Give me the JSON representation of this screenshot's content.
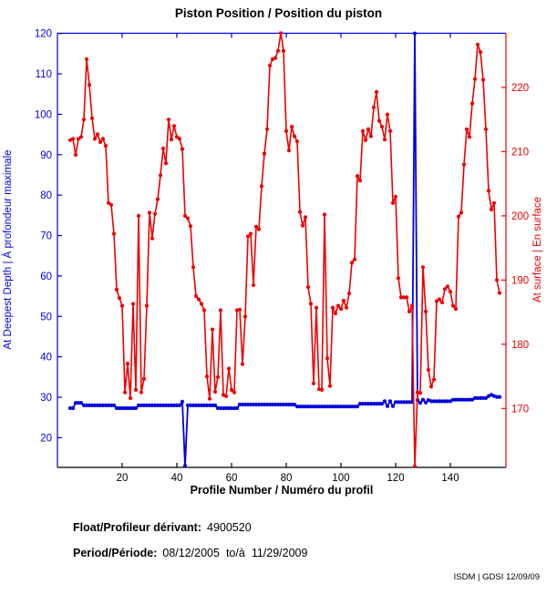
{
  "title": "Piston Position / Position du piston",
  "footer": {
    "float_label": "Float/Profileur dérivant:",
    "float_value": "4900520",
    "period_label": "Period/Période:",
    "period_start": "08/12/2005",
    "period_separator": "to/à",
    "period_end": "11/29/2009"
  },
  "corner_note": "ISDM | GDSI 12/09/09",
  "chart_data": {
    "type": "line",
    "title": "Piston Position / Position du piston",
    "xlabel": "Profile Number / Numéro du profil",
    "ylabel_left": "At Deepest Depth | À profondeur maximale",
    "ylabel_right": "At surface | En surface",
    "x_ticks": [
      20,
      40,
      60,
      80,
      100,
      120,
      140
    ],
    "left_ticks": [
      20,
      30,
      40,
      50,
      60,
      70,
      80,
      90,
      100,
      110,
      120
    ],
    "right_ticks": [
      170,
      180,
      190,
      200,
      210,
      220
    ],
    "x_range": [
      -3.7,
      160.3
    ],
    "left_range": [
      12.6,
      120
    ],
    "right_range": [
      160.8,
      228.5
    ],
    "grid": false,
    "legend": "none",
    "x_start": 1,
    "colors": {
      "left_axis": "#0000DD",
      "right_axis": "#EE0000",
      "bottom_axis": "#000000",
      "top_axis": "#0000DD",
      "text": "#000000"
    },
    "series": [
      {
        "name": "At Deepest Depth | À profondeur maximale",
        "axis": "left",
        "color": "#0000DD",
        "marker": "dot",
        "values": [
          27.3,
          27.3,
          28.6,
          28.6,
          28.6,
          28.0,
          28.0,
          28.0,
          28.0,
          28.0,
          28.0,
          28.0,
          28.0,
          28.0,
          28.0,
          28.0,
          28.0,
          27.3,
          27.3,
          27.3,
          27.3,
          27.3,
          27.3,
          27.3,
          27.3,
          28.0,
          28.0,
          28.0,
          28.0,
          28.0,
          28.0,
          28.0,
          28.0,
          28.0,
          28.0,
          28.0,
          28.0,
          28.0,
          28.0,
          28.0,
          28.0,
          28.9,
          13.0,
          28.0,
          28.0,
          28.0,
          28.0,
          28.0,
          28.0,
          28.0,
          28.0,
          28.0,
          28.0,
          28.0,
          27.3,
          27.3,
          27.3,
          27.3,
          27.3,
          27.3,
          27.3,
          27.3,
          28.2,
          28.2,
          28.2,
          28.2,
          28.2,
          28.2,
          28.2,
          28.2,
          28.2,
          28.2,
          28.2,
          28.2,
          28.2,
          28.2,
          28.2,
          28.2,
          28.2,
          28.2,
          28.2,
          28.2,
          28.2,
          27.7,
          27.7,
          27.7,
          27.7,
          27.7,
          27.7,
          27.7,
          27.7,
          27.7,
          27.7,
          27.7,
          27.7,
          27.7,
          27.7,
          27.7,
          27.7,
          27.7,
          27.7,
          27.7,
          27.7,
          27.7,
          27.7,
          27.7,
          28.4,
          28.4,
          28.4,
          28.4,
          28.4,
          28.4,
          28.4,
          28.4,
          28.4,
          29.0,
          27.8,
          29.0,
          27.8,
          28.8,
          28.8,
          28.8,
          28.8,
          28.8,
          28.8,
          28.8,
          120.0,
          29.3,
          28.6,
          29.4,
          28.7,
          29.3,
          29.0,
          29.0,
          29.0,
          29.0,
          29.0,
          29.0,
          29.0,
          29.0,
          29.4,
          29.4,
          29.4,
          29.4,
          29.4,
          29.4,
          29.4,
          29.4,
          29.8,
          29.8,
          29.8,
          29.8,
          29.8,
          30.3,
          30.6,
          30.3,
          30.1,
          30.1
        ]
      },
      {
        "name": "At surface | En surface",
        "axis": "right",
        "color": "#EE0000",
        "marker": "dot",
        "values": [
          211.8,
          212.0,
          209.5,
          212.0,
          212.3,
          215.0,
          224.4,
          220.4,
          215.2,
          212.0,
          212.7,
          211.5,
          212.0,
          210.9,
          202.0,
          201.7,
          197.2,
          188.5,
          187.2,
          186.0,
          172.5,
          177.0,
          171.6,
          186.3,
          172.9,
          200.0,
          172.5,
          174.6,
          186.0,
          200.5,
          196.5,
          200.3,
          202.6,
          206.3,
          210.5,
          208.2,
          215.0,
          211.9,
          214.0,
          212.3,
          212.0,
          210.4,
          200.0,
          199.6,
          198.4,
          192.0,
          187.5,
          187.0,
          186.3,
          185.3,
          175.0,
          171.5,
          182.3,
          172.6,
          174.9,
          185.3,
          172.1,
          171.9,
          176.2,
          172.9,
          172.5,
          185.3,
          185.4,
          176.9,
          184.3,
          196.8,
          197.2,
          189.2,
          198.3,
          197.9,
          204.6,
          209.7,
          213.5,
          223.4,
          224.4,
          224.6,
          225.7,
          228.5,
          225.7,
          213.2,
          210.2,
          213.9,
          212.4,
          211.6,
          200.6,
          198.5,
          199.8,
          188.9,
          186.3,
          173.9,
          185.7,
          173.0,
          172.9,
          200.2,
          177.8,
          173.5,
          185.7,
          184.8,
          186.0,
          185.5,
          186.8,
          185.7,
          187.9,
          192.7,
          193.2,
          206.2,
          205.5,
          213.2,
          211.8,
          213.5,
          212.4,
          216.9,
          219.3,
          214.8,
          213.9,
          211.9,
          215.8,
          213.2,
          202.0,
          203.0,
          190.3,
          187.3,
          187.3,
          187.3,
          185.1,
          186.0,
          161.0,
          172.5,
          172.4,
          192.0,
          185.1,
          176.0,
          173.4,
          174.5,
          186.7,
          187.0,
          186.5,
          188.6,
          189.0,
          188.2,
          186.0,
          185.5,
          199.9,
          200.5,
          208.0,
          213.5,
          212.3,
          217.5,
          221.3,
          226.7,
          225.5,
          221.2,
          213.5,
          203.9,
          201.0,
          202.0,
          190.0,
          188.0
        ]
      }
    ],
    "annotations": {
      "deep_spike_down_profile": 43,
      "big_spike_profile": 127
    }
  }
}
